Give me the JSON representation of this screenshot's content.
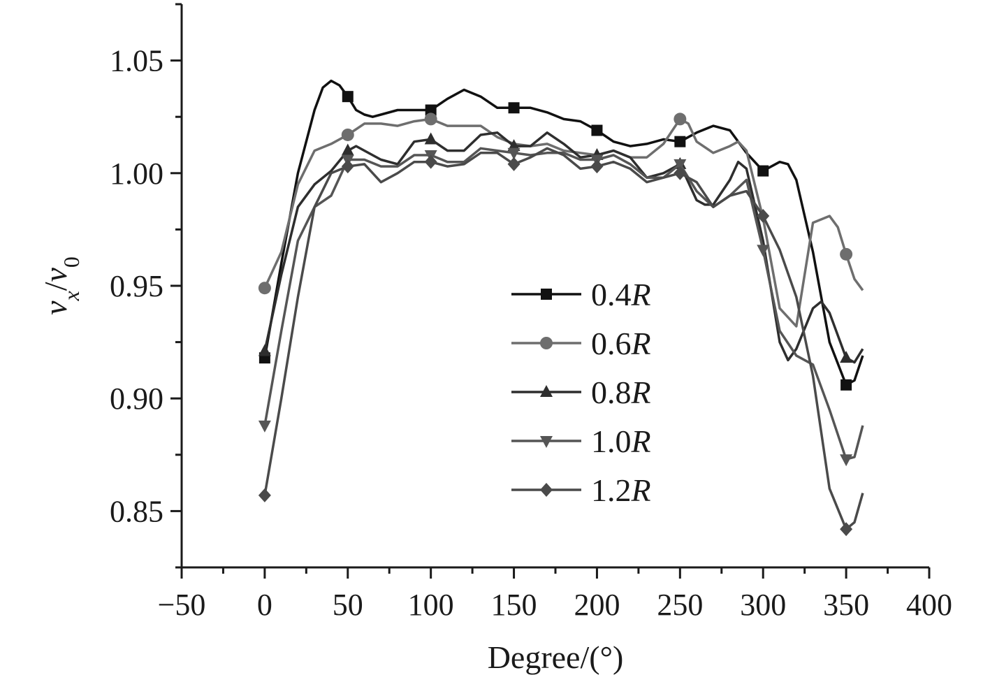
{
  "chart_data": {
    "type": "line",
    "title": "",
    "xlabel": "Degree/(°)",
    "ylabel": {
      "base": "v",
      "sub1": "x",
      "sep": "/",
      "base2": "v",
      "sub2": "0"
    },
    "xlim": [
      -50,
      400
    ],
    "ylim": [
      0.825,
      1.075
    ],
    "x_ticks": [
      -50,
      0,
      50,
      100,
      150,
      200,
      250,
      300,
      350,
      400
    ],
    "x_tick_labels": [
      "−50",
      "0",
      "50",
      "100",
      "150",
      "200",
      "250",
      "300",
      "350",
      "400"
    ],
    "y_ticks": [
      0.85,
      0.9,
      0.95,
      1.0,
      1.05
    ],
    "y_tick_labels": [
      "0.85",
      "0.90",
      "0.95",
      "1.00",
      "1.05"
    ],
    "legend_position": "center-right",
    "series": [
      {
        "name": "0.4R",
        "name_num": "0.4",
        "name_unit": "R",
        "color": "#111111",
        "marker": "square",
        "x": [
          0,
          10,
          20,
          30,
          35,
          40,
          45,
          50,
          55,
          60,
          65,
          70,
          80,
          90,
          100,
          110,
          120,
          130,
          140,
          150,
          160,
          170,
          180,
          190,
          200,
          210,
          220,
          230,
          240,
          250,
          260,
          270,
          280,
          290,
          300,
          310,
          315,
          320,
          330,
          340,
          350,
          355,
          360
        ],
        "y": [
          0.918,
          0.96,
          1.0,
          1.028,
          1.038,
          1.041,
          1.039,
          1.034,
          1.028,
          1.026,
          1.025,
          1.026,
          1.028,
          1.028,
          1.028,
          1.033,
          1.037,
          1.034,
          1.029,
          1.029,
          1.029,
          1.027,
          1.024,
          1.023,
          1.019,
          1.014,
          1.012,
          1.013,
          1.015,
          1.014,
          1.018,
          1.021,
          1.019,
          1.009,
          1.001,
          1.005,
          1.004,
          0.997,
          0.965,
          0.925,
          0.906,
          0.908,
          0.919
        ],
        "markers_x": [
          0,
          50,
          100,
          150,
          200,
          250,
          300,
          350
        ]
      },
      {
        "name": "0.6R",
        "name_num": "0.6",
        "name_unit": "R",
        "color": "#6e6e6e",
        "marker": "circle",
        "x": [
          0,
          10,
          20,
          30,
          40,
          50,
          60,
          70,
          80,
          90,
          100,
          110,
          120,
          130,
          140,
          150,
          160,
          170,
          180,
          190,
          200,
          210,
          220,
          230,
          240,
          250,
          255,
          260,
          270,
          280,
          285,
          290,
          300,
          310,
          320,
          330,
          340,
          345,
          350,
          355,
          360
        ],
        "y": [
          0.949,
          0.965,
          0.995,
          1.01,
          1.013,
          1.017,
          1.022,
          1.022,
          1.021,
          1.023,
          1.024,
          1.021,
          1.021,
          1.021,
          1.016,
          1.013,
          1.012,
          1.013,
          1.01,
          1.009,
          1.008,
          1.01,
          1.007,
          1.007,
          1.013,
          1.024,
          1.022,
          1.014,
          1.009,
          1.012,
          1.014,
          1.01,
          0.98,
          0.94,
          0.932,
          0.978,
          0.981,
          0.976,
          0.964,
          0.953,
          0.948
        ],
        "markers_x": [
          0,
          50,
          100,
          250,
          350
        ]
      },
      {
        "name": "0.8R",
        "name_num": "0.8",
        "name_unit": "R",
        "color": "#2e2e2e",
        "marker": "triangle-up",
        "x": [
          0,
          10,
          20,
          30,
          40,
          50,
          55,
          60,
          70,
          80,
          90,
          100,
          110,
          120,
          130,
          140,
          150,
          160,
          170,
          180,
          190,
          200,
          210,
          220,
          230,
          240,
          250,
          260,
          265,
          270,
          280,
          285,
          290,
          300,
          310,
          315,
          320,
          330,
          335,
          340,
          350,
          355,
          360
        ],
        "y": [
          0.921,
          0.955,
          0.985,
          0.995,
          1.001,
          1.01,
          1.012,
          1.01,
          1.006,
          1.004,
          1.014,
          1.015,
          1.01,
          1.01,
          1.017,
          1.018,
          1.012,
          1.012,
          1.018,
          1.013,
          1.007,
          1.008,
          1.01,
          1.007,
          0.998,
          1.0,
          1.004,
          0.988,
          0.986,
          0.986,
          0.997,
          1.005,
          1.002,
          0.97,
          0.925,
          0.917,
          0.922,
          0.94,
          0.943,
          0.938,
          0.918,
          0.916,
          0.922
        ],
        "markers_x": [
          0,
          50,
          100,
          150,
          200,
          250,
          350
        ]
      },
      {
        "name": "1.0R",
        "name_num": "1.0",
        "name_unit": "R",
        "color": "#555555",
        "marker": "triangle-down",
        "x": [
          0,
          10,
          20,
          30,
          40,
          50,
          60,
          70,
          80,
          90,
          100,
          110,
          120,
          130,
          140,
          150,
          160,
          170,
          180,
          190,
          200,
          210,
          220,
          230,
          240,
          250,
          260,
          270,
          280,
          290,
          300,
          310,
          320,
          330,
          340,
          350,
          355,
          360
        ],
        "y": [
          0.888,
          0.93,
          0.97,
          0.985,
          0.99,
          1.006,
          1.006,
          1.003,
          1.003,
          1.008,
          1.008,
          1.005,
          1.005,
          1.011,
          1.01,
          1.009,
          1.008,
          1.009,
          1.009,
          1.006,
          1.006,
          1.008,
          1.004,
          0.998,
          0.998,
          1.004,
          0.992,
          0.985,
          0.99,
          0.997,
          0.966,
          0.93,
          0.919,
          0.915,
          0.895,
          0.873,
          0.874,
          0.888
        ],
        "markers_x": [
          0,
          50,
          100,
          150,
          200,
          250,
          300,
          350
        ]
      },
      {
        "name": "1.2R",
        "name_num": "1.2",
        "name_unit": "R",
        "color": "#4a4a4a",
        "marker": "diamond",
        "x": [
          0,
          10,
          20,
          30,
          40,
          50,
          60,
          70,
          80,
          90,
          100,
          110,
          120,
          130,
          140,
          150,
          160,
          170,
          180,
          190,
          200,
          210,
          220,
          230,
          240,
          250,
          260,
          270,
          280,
          290,
          300,
          310,
          320,
          330,
          340,
          350,
          355,
          360
        ],
        "y": [
          0.857,
          0.9,
          0.945,
          0.985,
          1.0,
          1.003,
          1.004,
          0.996,
          1.0,
          1.005,
          1.005,
          1.003,
          1.004,
          1.009,
          1.009,
          1.004,
          1.007,
          1.011,
          1.008,
          1.002,
          1.003,
          1.005,
          1.002,
          0.996,
          0.998,
          1.0,
          0.996,
          0.985,
          0.99,
          0.992,
          0.981,
          0.966,
          0.945,
          0.91,
          0.86,
          0.842,
          0.845,
          0.858
        ],
        "markers_x": [
          0,
          50,
          100,
          150,
          200,
          250,
          300,
          350
        ]
      }
    ]
  }
}
